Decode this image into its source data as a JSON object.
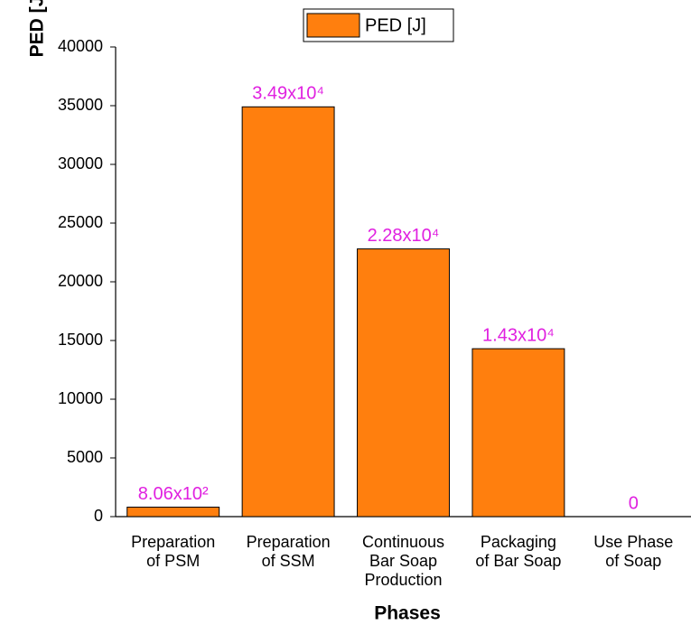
{
  "chart_data": {
    "type": "bar",
    "x_label": "Phases",
    "y_label": "PED [J]",
    "categories": [
      "Preparation\nof PSM",
      "Preparation\nof SSM",
      "Continuous\nBar Soap\nProduction",
      "Packaging\nof Bar Soap",
      "Use Phase\nof Soap"
    ],
    "series": [
      {
        "name": "PED [J]",
        "color": "#ff7f0e",
        "values": [
          806,
          34900,
          22800,
          14300,
          0
        ],
        "value_labels": [
          "8.06x10²",
          "3.49x10⁴",
          "2.28x10⁴",
          "1.43x10⁴",
          "0"
        ]
      }
    ],
    "label_color": "#e020e0",
    "ylim": [
      0,
      40000
    ],
    "yticks": [
      0,
      5000,
      10000,
      15000,
      20000,
      25000,
      30000,
      35000,
      40000
    ],
    "legend": "top"
  }
}
